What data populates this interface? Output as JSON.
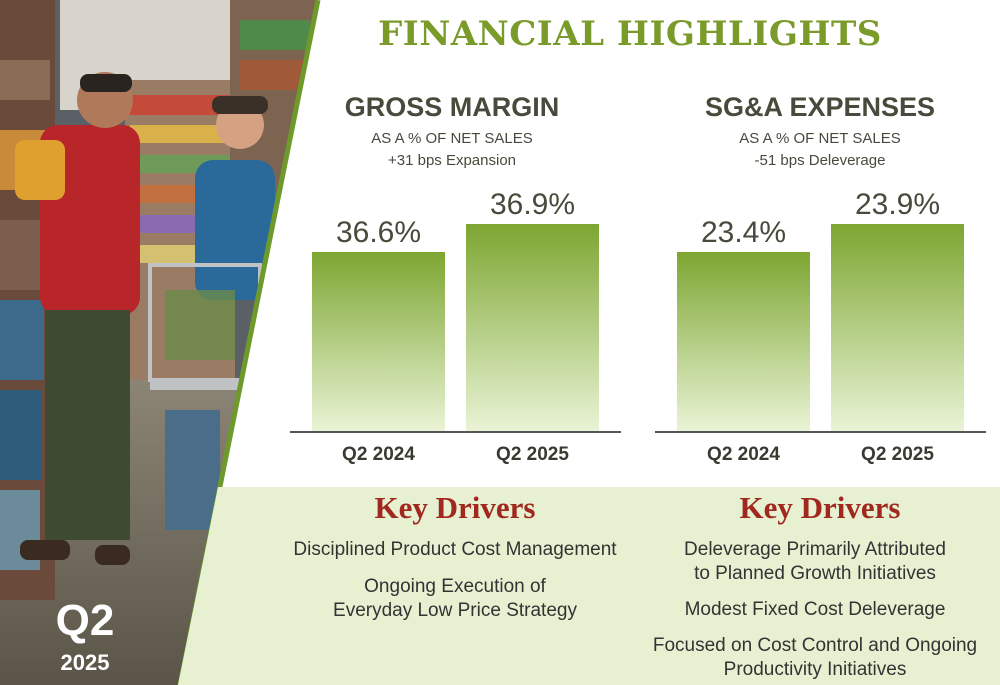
{
  "header": {
    "title": "FINANCIAL HIGHLIGHTS"
  },
  "badge": {
    "quarter": "Q2",
    "year": "2025"
  },
  "colors": {
    "title_green": "#7a9a2a",
    "bar_top": "#7da632",
    "bar_bottom": "#eaf4d6",
    "drivers_bg": "#e7f1d2",
    "drivers_title": "#a0281e",
    "text_dark": "#4a4a3c"
  },
  "chart_data": [
    {
      "type": "bar",
      "title": "GROSS MARGIN",
      "subtitle_lines": [
        "AS A % OF NET SALES",
        "+31 bps Expansion"
      ],
      "categories": [
        "Q2 2024",
        "Q2 2025"
      ],
      "values": [
        36.6,
        36.9
      ],
      "value_labels": [
        "36.6%",
        "36.9%"
      ],
      "xlabel": "",
      "ylabel": "",
      "grid": false,
      "legend": false
    },
    {
      "type": "bar",
      "title": "SG&A EXPENSES",
      "subtitle_lines": [
        "AS A % OF NET SALES",
        "-51 bps Deleverage"
      ],
      "categories": [
        "Q2 2024",
        "Q2 2025"
      ],
      "values": [
        23.4,
        23.9
      ],
      "value_labels": [
        "23.4%",
        "23.9%"
      ],
      "xlabel": "",
      "ylabel": "",
      "grid": false,
      "legend": false
    }
  ],
  "drivers": [
    {
      "title": "Key Drivers",
      "items": [
        "Disciplined Product Cost Management",
        "Ongoing Execution of\nEveryday Low Price Strategy"
      ]
    },
    {
      "title": "Key Drivers",
      "items": [
        "Deleverage Primarily Attributed\nto Planned Growth Initiatives",
        "Modest Fixed Cost Deleverage",
        "Focused on Cost Control and Ongoing\nProductivity Initiatives"
      ]
    }
  ]
}
